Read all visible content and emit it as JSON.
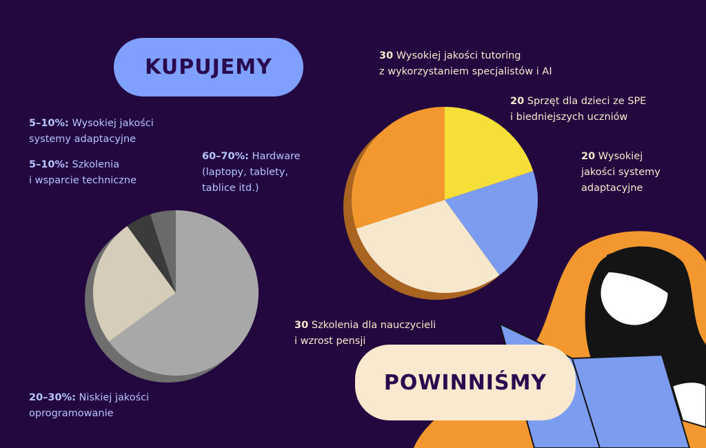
{
  "chart_data": [
    {
      "type": "pie",
      "title": "KUPUJEMY",
      "categories": [
        "Hardware\n(laptopy, tablety,\ntablice itd.)",
        "Niskiej jakości\noprogramowanie",
        "Wysokiej jakości\nsystemy adaptacyjne",
        "Szkolenia\ni wsparcie techniczne"
      ],
      "values": [
        65,
        25,
        5,
        5
      ],
      "value_labels": [
        "60–70%:",
        "20–30%:",
        "5–10%:",
        "5–10%:"
      ],
      "colors": [
        "#a8a8a8",
        "#d5cdb9",
        "#3b3b3b",
        "#6a6a6a"
      ]
    },
    {
      "type": "pie",
      "title": "POWINNIŚMY",
      "categories": [
        "Sprzęt dla dzieci ze SPE\ni biedniejszych uczniów",
        "Wysokiej\njakości systemy\nadaptacyjne",
        "Szkolenia dla nauczycieli\ni wzrost pensji",
        "Wysokiej jakości tutoring\nz wykorzystaniem specjalistów i AI"
      ],
      "values": [
        20,
        20,
        30,
        30
      ],
      "colors": [
        "#f5df38",
        "#7c9cf0",
        "#f6e7cd",
        "#f3982e"
      ]
    }
  ]
}
